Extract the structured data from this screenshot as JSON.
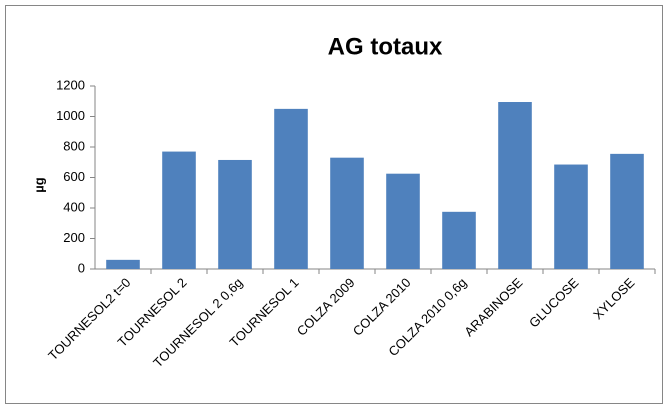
{
  "chart_data": {
    "type": "bar",
    "title": "AG totaux",
    "y_label": "µg",
    "categories": [
      "TOURNESOL2 t=0",
      "TOURNESOL 2",
      "TOURNESOL 2 0,6g",
      "TOURNESOL 1",
      "COLZA 2009",
      "COLZA 2010",
      "COLZA 2010 0,6g",
      "ARABINOSE",
      "GLUCOSE",
      "XYLOSE"
    ],
    "values": [
      60,
      770,
      715,
      1050,
      730,
      625,
      375,
      1095,
      685,
      755
    ],
    "color": "#4f81bd",
    "ylim": [
      0,
      1200
    ],
    "yticks": [
      0,
      200,
      400,
      600,
      800,
      1000,
      1200
    ],
    "grid": false
  }
}
